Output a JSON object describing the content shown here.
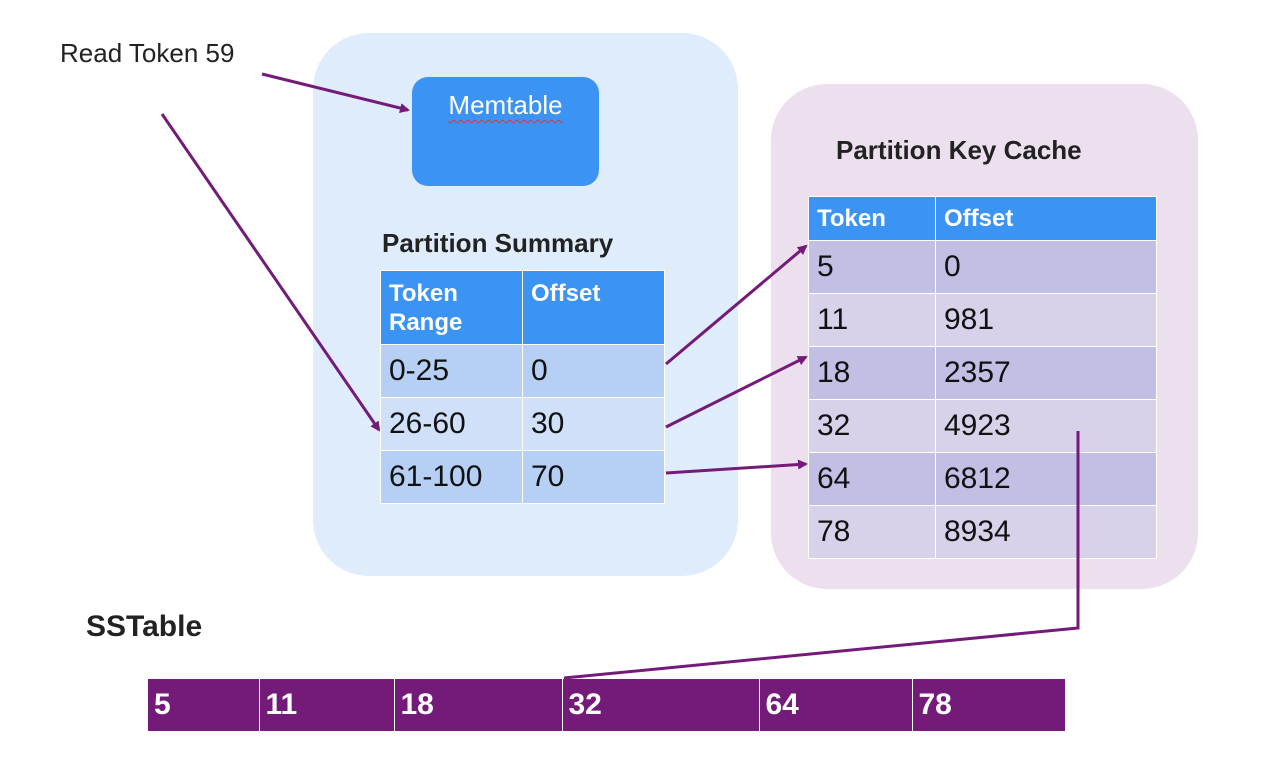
{
  "read_label": "Read Token 59",
  "memtable_label": "Memtable",
  "partition_summary": {
    "title": "Partition Summary",
    "headers": [
      "Token Range",
      "Offset"
    ],
    "rows": [
      [
        "0-25",
        "0"
      ],
      [
        "26-60",
        "30"
      ],
      [
        "61-100",
        "70"
      ]
    ]
  },
  "partition_key_cache": {
    "title": "Partition Key Cache",
    "headers": [
      "Token",
      "Offset"
    ],
    "rows": [
      [
        "5",
        "0"
      ],
      [
        "11",
        "981"
      ],
      [
        "18",
        "2357"
      ],
      [
        "32",
        "4923"
      ],
      [
        "64",
        "6812"
      ],
      [
        "78",
        "8934"
      ]
    ]
  },
  "sstable": {
    "title": "SSTable",
    "cells": [
      "5",
      "11",
      "18",
      "32",
      "64",
      "78"
    ]
  },
  "colors": {
    "arrow": "#741b7a",
    "memtable": "#3b93f3",
    "summary_panel": "#dfecfb",
    "cache_panel": "#ecdfee",
    "sstable": "#741b7a"
  }
}
